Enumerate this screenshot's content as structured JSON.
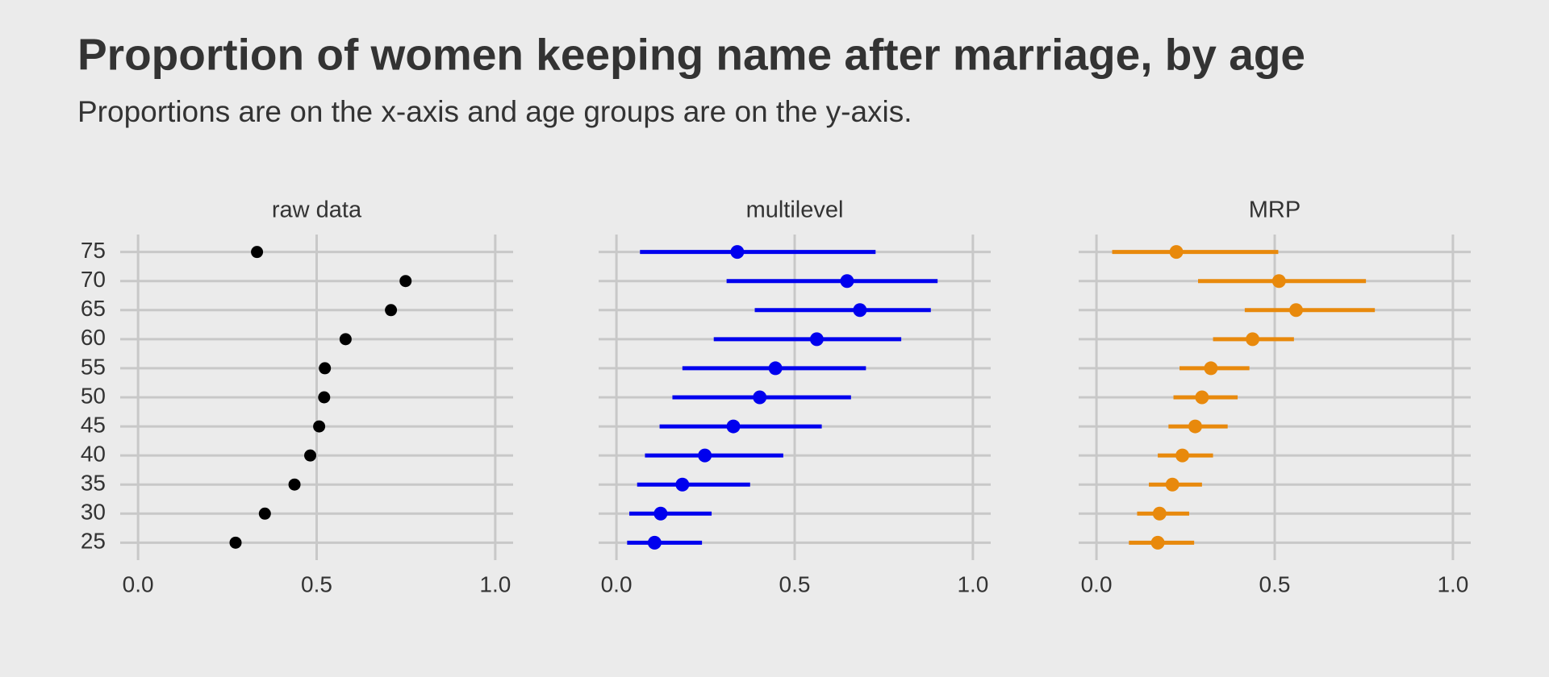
{
  "title": "Proportion of women keeping name after marriage, by age",
  "subtitle": "Proportions are on the x-axis and age groups are on the y-axis.",
  "chart_data": [
    {
      "type": "scatter",
      "title": "raw data",
      "color": "#000000",
      "categories": [
        75,
        70,
        65,
        60,
        55,
        50,
        45,
        40,
        35,
        30,
        25
      ],
      "values": [
        0.333,
        0.749,
        0.708,
        0.581,
        0.523,
        0.521,
        0.507,
        0.482,
        0.438,
        0.355,
        0.273
      ],
      "xlim": [
        -0.05,
        1.05
      ],
      "xticks": [
        {
          "value": 0,
          "label": "0.0"
        },
        {
          "value": 0.5,
          "label": "0.5"
        },
        {
          "value": 1,
          "label": "1.0"
        }
      ],
      "ylim": [
        22,
        78
      ],
      "grid": true
    },
    {
      "type": "pointrange",
      "title": "multilevel",
      "color": "#0000ee",
      "categories": [
        75,
        70,
        65,
        60,
        55,
        50,
        45,
        40,
        35,
        30,
        25
      ],
      "values": [
        0.339,
        0.647,
        0.683,
        0.562,
        0.446,
        0.402,
        0.328,
        0.248,
        0.185,
        0.124,
        0.107
      ],
      "lower": [
        0.066,
        0.309,
        0.388,
        0.273,
        0.185,
        0.157,
        0.121,
        0.08,
        0.058,
        0.036,
        0.03
      ],
      "upper": [
        0.727,
        0.901,
        0.882,
        0.799,
        0.7,
        0.658,
        0.576,
        0.468,
        0.375,
        0.267,
        0.24
      ],
      "xlim": [
        -0.05,
        1.05
      ],
      "xticks": [
        {
          "value": 0,
          "label": "0.0"
        },
        {
          "value": 0.5,
          "label": "0.5"
        },
        {
          "value": 1,
          "label": "1.0"
        }
      ],
      "ylim": [
        22,
        78
      ],
      "grid": true
    },
    {
      "type": "pointrange",
      "title": "MRP",
      "color": "#e8890c",
      "categories": [
        75,
        70,
        65,
        60,
        55,
        50,
        45,
        40,
        35,
        30,
        25
      ],
      "values": [
        0.224,
        0.512,
        0.56,
        0.438,
        0.321,
        0.296,
        0.277,
        0.241,
        0.213,
        0.177,
        0.172
      ],
      "lower": [
        0.044,
        0.285,
        0.416,
        0.327,
        0.233,
        0.216,
        0.202,
        0.172,
        0.147,
        0.114,
        0.091
      ],
      "upper": [
        0.51,
        0.756,
        0.781,
        0.554,
        0.429,
        0.396,
        0.368,
        0.327,
        0.296,
        0.26,
        0.274
      ],
      "xlim": [
        -0.05,
        1.05
      ],
      "xticks": [
        {
          "value": 0,
          "label": "0.0"
        },
        {
          "value": 0.5,
          "label": "0.5"
        },
        {
          "value": 1,
          "label": "1.0"
        }
      ],
      "ylim": [
        22,
        78
      ],
      "grid": true
    }
  ]
}
